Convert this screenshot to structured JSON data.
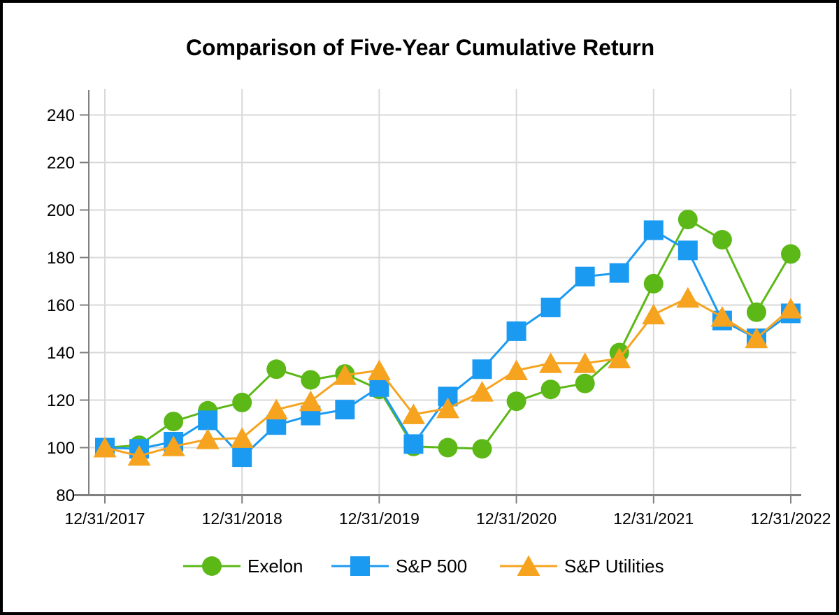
{
  "chart_data": {
    "type": "line",
    "title": "Comparison of Five-Year Cumulative Return",
    "x": [
      "12/31/2017",
      "3/31/2018",
      "6/30/2018",
      "9/30/2018",
      "12/31/2018",
      "3/31/2019",
      "6/30/2019",
      "9/30/2019",
      "12/31/2019",
      "3/31/2020",
      "6/30/2020",
      "9/30/2020",
      "12/31/2020",
      "3/31/2021",
      "6/30/2021",
      "9/30/2021",
      "12/31/2021",
      "3/31/2022",
      "6/30/2022",
      "9/30/2022",
      "12/31/2022"
    ],
    "x_axis_tick_labels": [
      "12/31/2017",
      "12/31/2018",
      "12/31/2019",
      "12/31/2020",
      "12/31/2021",
      "12/31/2022"
    ],
    "y_ticks": [
      80,
      100,
      120,
      140,
      160,
      180,
      200,
      220,
      240
    ],
    "ylim": [
      80,
      250
    ],
    "grid": true,
    "legend_position": "bottom",
    "series": [
      {
        "name": "Exelon",
        "marker": "circle",
        "color": "#5CB817",
        "values": [
          100,
          101,
          111,
          115.5,
          119,
          133,
          128.5,
          131,
          124.5,
          100.5,
          100,
          99.5,
          119.5,
          124.5,
          127,
          140,
          169,
          196,
          187.5,
          157,
          181.5
        ]
      },
      {
        "name": "S&P 500",
        "marker": "square",
        "color": "#1B9AF2",
        "values": [
          100,
          99.5,
          102.5,
          111.5,
          96,
          109.5,
          113.5,
          116,
          125.5,
          101.5,
          121.5,
          133,
          149,
          159,
          172,
          173.5,
          191.5,
          183,
          153.5,
          146,
          156.5
        ]
      },
      {
        "name": "S&P Utilities",
        "marker": "triangle",
        "color": "#F6A41F",
        "values": [
          100,
          96.5,
          100.5,
          103.5,
          104,
          116,
          119.5,
          130.5,
          132.5,
          114,
          116.5,
          123.5,
          132.5,
          135.5,
          135.5,
          137.5,
          156,
          163,
          155,
          146,
          158.5
        ]
      }
    ],
    "colors": {
      "grid": "#D9D9D9",
      "axis": "#808080",
      "text": "#000000"
    }
  }
}
